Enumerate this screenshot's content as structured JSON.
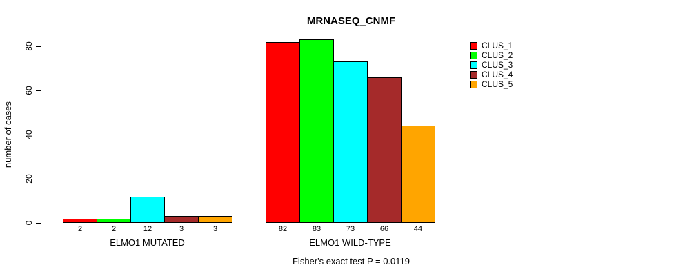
{
  "title": "MRNASEQ_CNMF",
  "caption": "Fisher's exact test P = 0.0119",
  "chart_data": {
    "type": "bar",
    "title": "MRNASEQ_CNMF",
    "xlabel": "",
    "ylabel": "number of cases",
    "ylim": [
      0,
      80
    ],
    "yticks": [
      0,
      20,
      40,
      60,
      80
    ],
    "grid": false,
    "legend_position": "right",
    "groups": [
      "ELMO1 MUTATED",
      "ELMO1 WILD-TYPE"
    ],
    "series": [
      {
        "name": "CLUS_1",
        "color": "#FF0000",
        "values": [
          2,
          82
        ]
      },
      {
        "name": "CLUS_2",
        "color": "#00FF00",
        "values": [
          2,
          83
        ]
      },
      {
        "name": "CLUS_3",
        "color": "#00FFFF",
        "values": [
          12,
          73
        ]
      },
      {
        "name": "CLUS_4",
        "color": "#A52A2A",
        "values": [
          3,
          66
        ]
      },
      {
        "name": "CLUS_5",
        "color": "#FFA500",
        "values": [
          3,
          44
        ]
      }
    ],
    "bar_labels": [
      [
        "2",
        "2",
        "12",
        "3",
        "3"
      ],
      [
        "82",
        "83",
        "73",
        "66",
        "44"
      ]
    ],
    "annotation": "Fisher's exact test P = 0.0119"
  }
}
